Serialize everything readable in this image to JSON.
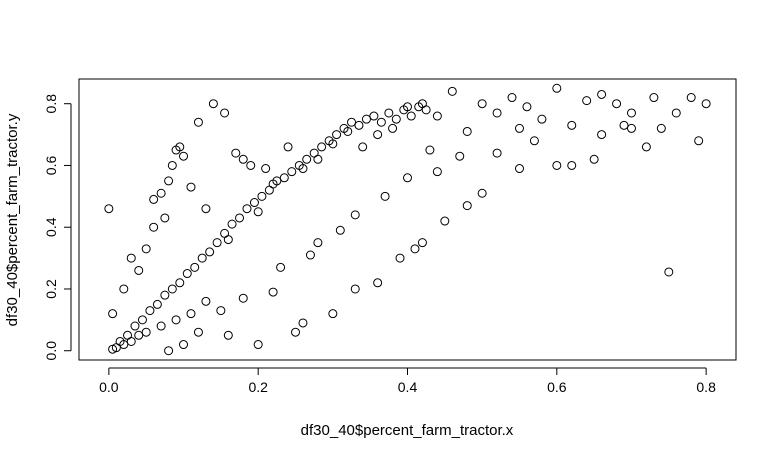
{
  "chart_data": {
    "type": "scatter",
    "title": "",
    "xlabel": "df30_40$percent_farm_tractor.x",
    "ylabel": "df30_40$percent_farm_tractor.y",
    "xlim": [
      -0.04,
      0.84
    ],
    "ylim": [
      -0.03,
      0.88
    ],
    "x_ticks": [
      0.0,
      0.2,
      0.4,
      0.6,
      0.8
    ],
    "x_tick_labels": [
      "0.0",
      "0.2",
      "0.4",
      "0.6",
      "0.8"
    ],
    "y_ticks": [
      0.0,
      0.2,
      0.4,
      0.6,
      0.8
    ],
    "y_tick_labels": [
      "0.0",
      "0.2",
      "0.4",
      "0.6",
      "0.8"
    ],
    "grid": false,
    "marker": "open-circle",
    "point_color": "#000000",
    "series": [
      {
        "values": [
          [
            0.0,
            0.46
          ],
          [
            0.005,
            0.12
          ],
          [
            0.02,
            0.2
          ],
          [
            0.03,
            0.3
          ],
          [
            0.04,
            0.26
          ],
          [
            0.05,
            0.33
          ],
          [
            0.06,
            0.4
          ],
          [
            0.06,
            0.49
          ],
          [
            0.07,
            0.51
          ],
          [
            0.075,
            0.43
          ],
          [
            0.08,
            0.55
          ],
          [
            0.085,
            0.6
          ],
          [
            0.09,
            0.65
          ],
          [
            0.095,
            0.66
          ],
          [
            0.1,
            0.63
          ],
          [
            0.11,
            0.53
          ],
          [
            0.12,
            0.74
          ],
          [
            0.13,
            0.46
          ],
          [
            0.14,
            0.8
          ],
          [
            0.155,
            0.77
          ],
          [
            0.16,
            0.36
          ],
          [
            0.17,
            0.64
          ],
          [
            0.18,
            0.62
          ],
          [
            0.19,
            0.6
          ],
          [
            0.21,
            0.59
          ],
          [
            0.12,
            0.06
          ],
          [
            0.1,
            0.02
          ],
          [
            0.08,
            0.0
          ],
          [
            0.16,
            0.05
          ],
          [
            0.2,
            0.02
          ],
          [
            0.25,
            0.06
          ],
          [
            0.26,
            0.09
          ],
          [
            0.3,
            0.12
          ],
          [
            0.33,
            0.2
          ],
          [
            0.36,
            0.22
          ],
          [
            0.39,
            0.3
          ],
          [
            0.41,
            0.33
          ],
          [
            0.42,
            0.35
          ],
          [
            0.45,
            0.42
          ],
          [
            0.48,
            0.47
          ],
          [
            0.5,
            0.51
          ],
          [
            0.55,
            0.59
          ],
          [
            0.6,
            0.6
          ],
          [
            0.62,
            0.6
          ],
          [
            0.65,
            0.62
          ],
          [
            0.72,
            0.66
          ],
          [
            0.75,
            0.255
          ],
          [
            0.79,
            0.68
          ],
          [
            0.8,
            0.8
          ],
          [
            0.78,
            0.82
          ],
          [
            0.76,
            0.77
          ],
          [
            0.73,
            0.82
          ],
          [
            0.7,
            0.77
          ],
          [
            0.68,
            0.8
          ],
          [
            0.66,
            0.83
          ],
          [
            0.64,
            0.81
          ],
          [
            0.62,
            0.73
          ],
          [
            0.6,
            0.85
          ],
          [
            0.58,
            0.75
          ],
          [
            0.56,
            0.79
          ],
          [
            0.54,
            0.82
          ],
          [
            0.52,
            0.77
          ],
          [
            0.5,
            0.8
          ],
          [
            0.48,
            0.71
          ],
          [
            0.46,
            0.84
          ],
          [
            0.44,
            0.76
          ],
          [
            0.42,
            0.8
          ],
          [
            0.4,
            0.79
          ],
          [
            0.38,
            0.72
          ],
          [
            0.36,
            0.7
          ],
          [
            0.34,
            0.66
          ],
          [
            0.32,
            0.71
          ],
          [
            0.3,
            0.67
          ],
          [
            0.28,
            0.62
          ],
          [
            0.26,
            0.59
          ],
          [
            0.24,
            0.66
          ],
          [
            0.22,
            0.54
          ],
          [
            0.2,
            0.45
          ],
          [
            0.44,
            0.58
          ],
          [
            0.52,
            0.64
          ],
          [
            0.57,
            0.68
          ],
          [
            0.66,
            0.7
          ],
          [
            0.7,
            0.72
          ],
          [
            0.74,
            0.72
          ],
          [
            0.69,
            0.73
          ],
          [
            0.55,
            0.72
          ],
          [
            0.47,
            0.63
          ],
          [
            0.43,
            0.65
          ],
          [
            0.4,
            0.56
          ],
          [
            0.37,
            0.5
          ],
          [
            0.33,
            0.44
          ],
          [
            0.31,
            0.39
          ],
          [
            0.28,
            0.35
          ],
          [
            0.27,
            0.31
          ],
          [
            0.23,
            0.27
          ],
          [
            0.22,
            0.19
          ],
          [
            0.18,
            0.17
          ],
          [
            0.15,
            0.13
          ],
          [
            0.13,
            0.16
          ],
          [
            0.11,
            0.12
          ],
          [
            0.09,
            0.1
          ],
          [
            0.07,
            0.08
          ],
          [
            0.05,
            0.06
          ],
          [
            0.04,
            0.05
          ],
          [
            0.03,
            0.03
          ],
          [
            0.02,
            0.02
          ],
          [
            0.01,
            0.01
          ],
          [
            0.005,
            0.005
          ],
          [
            0.015,
            0.03
          ],
          [
            0.025,
            0.05
          ],
          [
            0.035,
            0.08
          ],
          [
            0.045,
            0.1
          ],
          [
            0.055,
            0.13
          ],
          [
            0.065,
            0.15
          ],
          [
            0.075,
            0.18
          ],
          [
            0.085,
            0.2
          ],
          [
            0.095,
            0.22
          ],
          [
            0.105,
            0.25
          ],
          [
            0.115,
            0.27
          ],
          [
            0.125,
            0.3
          ],
          [
            0.135,
            0.32
          ],
          [
            0.145,
            0.35
          ],
          [
            0.155,
            0.38
          ],
          [
            0.165,
            0.41
          ],
          [
            0.175,
            0.43
          ],
          [
            0.185,
            0.46
          ],
          [
            0.195,
            0.48
          ],
          [
            0.205,
            0.5
          ],
          [
            0.215,
            0.52
          ],
          [
            0.225,
            0.55
          ],
          [
            0.235,
            0.56
          ],
          [
            0.245,
            0.58
          ],
          [
            0.255,
            0.6
          ],
          [
            0.265,
            0.62
          ],
          [
            0.275,
            0.64
          ],
          [
            0.285,
            0.66
          ],
          [
            0.295,
            0.68
          ],
          [
            0.305,
            0.7
          ],
          [
            0.315,
            0.72
          ],
          [
            0.325,
            0.74
          ],
          [
            0.335,
            0.73
          ],
          [
            0.345,
            0.75
          ],
          [
            0.355,
            0.76
          ],
          [
            0.365,
            0.74
          ],
          [
            0.375,
            0.77
          ],
          [
            0.385,
            0.75
          ],
          [
            0.395,
            0.78
          ],
          [
            0.405,
            0.76
          ],
          [
            0.415,
            0.79
          ],
          [
            0.425,
            0.78
          ]
        ]
      }
    ]
  }
}
